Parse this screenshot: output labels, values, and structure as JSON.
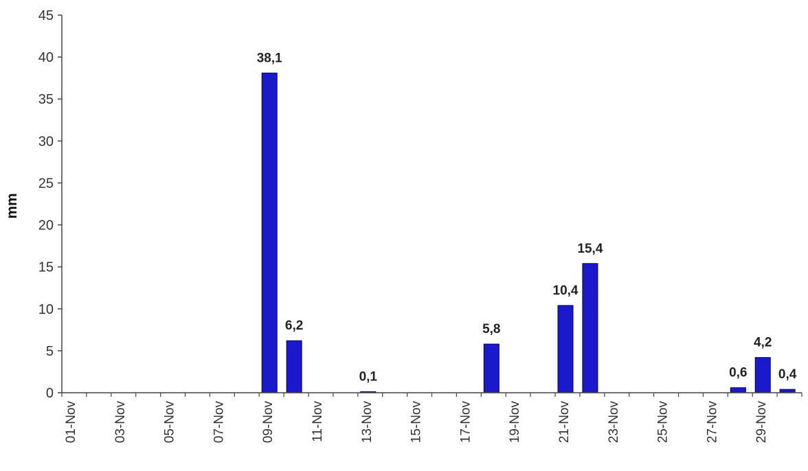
{
  "chart_data": {
    "type": "bar",
    "title": "",
    "xlabel": "",
    "ylabel": "mm",
    "ylim": [
      0,
      45
    ],
    "yticks": [
      0,
      5,
      10,
      15,
      20,
      25,
      30,
      35,
      40,
      45
    ],
    "grid": false,
    "legend": "none",
    "bar_color": "#1a1acc",
    "bar_edge_color": "#000066",
    "categories": [
      "01-Nov",
      "02-Nov",
      "03-Nov",
      "04-Nov",
      "05-Nov",
      "06-Nov",
      "07-Nov",
      "08-Nov",
      "09-Nov",
      "10-Nov",
      "11-Nov",
      "12-Nov",
      "13-Nov",
      "14-Nov",
      "15-Nov",
      "16-Nov",
      "17-Nov",
      "18-Nov",
      "19-Nov",
      "20-Nov",
      "21-Nov",
      "22-Nov",
      "23-Nov",
      "24-Nov",
      "25-Nov",
      "26-Nov",
      "27-Nov",
      "28-Nov",
      "29-Nov",
      "30-Nov"
    ],
    "xtick_labels": [
      "01-Nov",
      "03-Nov",
      "05-Nov",
      "07-Nov",
      "09-Nov",
      "11-Nov",
      "13-Nov",
      "15-Nov",
      "17-Nov",
      "19-Nov",
      "21-Nov",
      "23-Nov",
      "25-Nov",
      "27-Nov",
      "29-Nov"
    ],
    "values": [
      0,
      0,
      0,
      0,
      0,
      0,
      0,
      0,
      38.1,
      6.2,
      0,
      0,
      0.1,
      0,
      0,
      0,
      0,
      5.8,
      0,
      0,
      10.4,
      15.4,
      0,
      0,
      0,
      0,
      0,
      0.6,
      4.2,
      0.4
    ],
    "data_labels": [
      "",
      "",
      "",
      "",
      "",
      "",
      "",
      "",
      "38,1",
      "6,2",
      "",
      "",
      "0,1",
      "",
      "",
      "",
      "",
      "5,8",
      "",
      "",
      "10,4",
      "15,4",
      "",
      "",
      "",
      "",
      "",
      "0,6",
      "4,2",
      "0,4"
    ]
  }
}
